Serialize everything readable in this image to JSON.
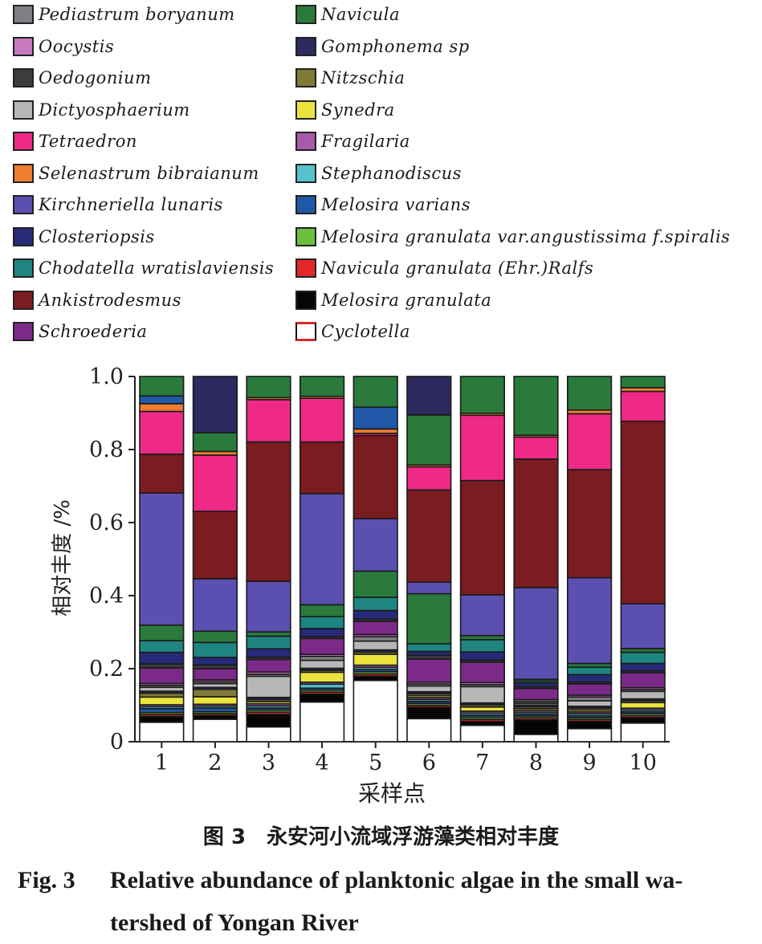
{
  "caption": {
    "cn": "图 3　永安河小流域浮游藻类相对丰度",
    "en_fig": "Fig. 3",
    "en_line1": "Relative abundance of planktonic algae in the small wa-",
    "en_line2": "tershed of Yongan River"
  },
  "chart_data": {
    "type": "bar",
    "stacked": true,
    "xlabel": "采样点",
    "ylabel": "相对丰度 /%",
    "ylim": [
      0,
      1.0
    ],
    "yticks": [
      "0",
      "0.2",
      "0.4",
      "0.6",
      "0.8",
      "1.0"
    ],
    "categories": [
      "1",
      "2",
      "3",
      "4",
      "5",
      "6",
      "7",
      "8",
      "9",
      "10"
    ],
    "legend": [
      {
        "name": "Pediastrum boryanum",
        "color": "#7f7f83"
      },
      {
        "name": "Oocystis",
        "color": "#c77bbe"
      },
      {
        "name": "Oedogonium",
        "color": "#3c3c3c"
      },
      {
        "name": "Dictyosphaerium",
        "color": "#b7b7b7"
      },
      {
        "name": "Tetraedron",
        "color": "#ee2a86"
      },
      {
        "name": "Selenastrum bibraianum",
        "color": "#ef7d2e"
      },
      {
        "name": "Kirchneriella lunaris",
        "color": "#5b4fb0"
      },
      {
        "name": "Closteriopsis",
        "color": "#262a78"
      },
      {
        "name": "Chodatella wratislaviensis",
        "color": "#1f8580"
      },
      {
        "name": "Ankistrodesmus",
        "color": "#7a1c20"
      },
      {
        "name": "Schroederia",
        "color": "#7c2a8a"
      },
      {
        "name": "Navicula",
        "color": "#2a7a3c"
      },
      {
        "name": "Gomphonema sp",
        "color": "#2c2a5e"
      },
      {
        "name": "Nitzschia",
        "color": "#7f7a36"
      },
      {
        "name": "Synedra",
        "color": "#ece43e"
      },
      {
        "name": "Fragilaria",
        "color": "#a85aaa"
      },
      {
        "name": "Stephanodiscus",
        "color": "#56c2d0"
      },
      {
        "name": "Melosira varians",
        "color": "#2058a8"
      },
      {
        "name": "Melosira granulata var.angustissima f.spiralis",
        "color": "#6cbf3c"
      },
      {
        "name": "Navicula granulata (Ehr.)Ralfs",
        "color": "#e42828"
      },
      {
        "name": "Melosira granulata",
        "color": "#050505"
      },
      {
        "name": "Cyclotella",
        "color": "#ffffff"
      }
    ],
    "legend_layout": "two columns above the plot, top-left",
    "legend_columns": [
      11,
      11
    ],
    "series": [
      {
        "name": "Cyclotella",
        "values": [
          0.05,
          0.06,
          0.035,
          0.1,
          0.14,
          0.06,
          0.04,
          0.02,
          0.035,
          0.05
        ]
      },
      {
        "name": "Melosira granulata",
        "values": [
          0.015,
          0.01,
          0.03,
          0.02,
          0.01,
          0.03,
          0.01,
          0.04,
          0.02,
          0.015
        ]
      },
      {
        "name": "Navicula granulata (Ehr.)Ralfs",
        "values": [
          0.005,
          0.005,
          0.005,
          0.005,
          0.005,
          0.005,
          0.005,
          0.005,
          0.005,
          0.005
        ]
      },
      {
        "name": "Melosira granulata var.angustissima f.spiralis",
        "values": [
          0.005,
          0.005,
          0.005,
          0.005,
          0.005,
          0.005,
          0.005,
          0.005,
          0.005,
          0.005
        ]
      },
      {
        "name": "Melosira varians",
        "values": [
          0.01,
          0.01,
          0.005,
          0.005,
          0.005,
          0.005,
          0.005,
          0.005,
          0.005,
          0.005
        ]
      },
      {
        "name": "Stephanodiscus",
        "values": [
          0.005,
          0.005,
          0.005,
          0.01,
          0.005,
          0.005,
          0.005,
          0.005,
          0.005,
          0.005
        ]
      },
      {
        "name": "Fragilaria",
        "values": [
          0.005,
          0.005,
          0.005,
          0.005,
          0.005,
          0.005,
          0.005,
          0.005,
          0.005,
          0.005
        ]
      },
      {
        "name": "Synedra",
        "values": [
          0.02,
          0.02,
          0.005,
          0.025,
          0.025,
          0.005,
          0.01,
          0.005,
          0.005,
          0.015
        ]
      },
      {
        "name": "Nitzschia",
        "values": [
          0.01,
          0.02,
          0.005,
          0.005,
          0.005,
          0.005,
          0.005,
          0.005,
          0.005,
          0.005
        ]
      },
      {
        "name": "Gomphonema sp",
        "values": [
          0.005,
          0.005,
          0.005,
          0.005,
          0.005,
          0.005,
          0.005,
          0.005,
          0.005,
          0.005
        ]
      },
      {
        "name": "Dictyosphaerium",
        "values": [
          0.01,
          0.01,
          0.05,
          0.02,
          0.02,
          0.015,
          0.04,
          0.005,
          0.015,
          0.02
        ]
      },
      {
        "name": "Pediastrum boryanum",
        "values": [
          0.005,
          0.005,
          0.005,
          0.01,
          0.01,
          0.005,
          0.005,
          0.005,
          0.01,
          0.005
        ]
      },
      {
        "name": "Oocystis",
        "values": [
          0.005,
          0.005,
          0.005,
          0.005,
          0.005,
          0.005,
          0.005,
          0.005,
          0.005,
          0.005
        ]
      },
      {
        "name": "Schroederia",
        "values": [
          0.04,
          0.03,
          0.03,
          0.04,
          0.03,
          0.06,
          0.05,
          0.03,
          0.03,
          0.04
        ]
      },
      {
        "name": "Oedogonium",
        "values": [
          0.01,
          0.01,
          0.005,
          0.005,
          0.005,
          0.01,
          0.005,
          0.005,
          0.005,
          0.005
        ]
      },
      {
        "name": "Closteriopsis",
        "values": [
          0.03,
          0.02,
          0.02,
          0.02,
          0.02,
          0.01,
          0.02,
          0.01,
          0.02,
          0.02
        ]
      },
      {
        "name": "Chodatella wratislaviensis",
        "values": [
          0.03,
          0.04,
          0.03,
          0.03,
          0.03,
          0.02,
          0.03,
          0.005,
          0.02,
          0.03
        ]
      },
      {
        "name": "Navicula",
        "values": [
          0.04,
          0.03,
          0.01,
          0.03,
          0.06,
          0.13,
          0.01,
          0.005,
          0.01,
          0.01
        ]
      },
      {
        "name": "Kirchneriella lunaris",
        "values": [
          0.34,
          0.14,
          0.12,
          0.28,
          0.12,
          0.03,
          0.1,
          0.25,
          0.23,
          0.12
        ]
      },
      {
        "name": "Ankistrodesmus",
        "values": [
          0.1,
          0.18,
          0.33,
          0.13,
          0.19,
          0.24,
          0.28,
          0.35,
          0.29,
          0.49
        ]
      },
      {
        "name": "Tetraedron",
        "values": [
          0.11,
          0.15,
          0.1,
          0.11,
          0.005,
          0.06,
          0.16,
          0.06,
          0.15,
          0.08
        ]
      },
      {
        "name": "Selenastrum bibraianum",
        "values": [
          0.02,
          0.01,
          0.005,
          0.005,
          0.01,
          0.005,
          0.005,
          0.005,
          0.01,
          0.01
        ]
      },
      {
        "name": "Melosira varians (top band)",
        "values": [
          0.02,
          0.0,
          0.0,
          0.0,
          0.05,
          0.0,
          0.0,
          0.0,
          0.0,
          0.0
        ]
      },
      {
        "name": "Navicula (upper band)",
        "values": [
          0.05,
          0.05,
          0.05,
          0.05,
          0.07,
          0.13,
          0.09,
          0.16,
          0.09,
          0.03
        ]
      },
      {
        "name": "Gomphonema sp (upper band)",
        "values": [
          0.0,
          0.15,
          0.0,
          0.0,
          0.0,
          0.1,
          0.0,
          0.0,
          0.0,
          0.0
        ]
      }
    ]
  }
}
